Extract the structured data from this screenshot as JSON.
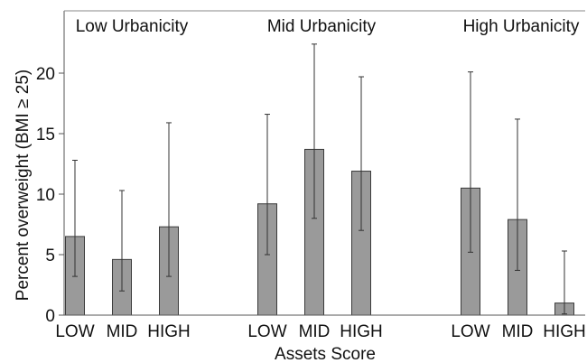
{
  "chart_data": {
    "type": "bar",
    "xlabel": "Assets Score",
    "ylabel": "Percent overweight  (BMI ≥ 25)",
    "ylim": [
      0,
      24
    ],
    "yticks": [
      0,
      5,
      10,
      15,
      20
    ],
    "grid": false,
    "legend": "none",
    "bar_color": "#9a9a9a",
    "groups": [
      {
        "title": "Low Urbanicity",
        "categories": [
          "LOW",
          "MID",
          "HIGH"
        ],
        "values": [
          6.5,
          4.6,
          7.3
        ],
        "error_low": [
          3.2,
          2.0,
          3.2
        ],
        "error_high": [
          12.8,
          10.3,
          15.9
        ]
      },
      {
        "title": "Mid Urbanicity",
        "categories": [
          "LOW",
          "MID",
          "HIGH"
        ],
        "values": [
          9.2,
          13.7,
          11.9
        ],
        "error_low": [
          5.0,
          8.0,
          7.0
        ],
        "error_high": [
          16.6,
          22.4,
          19.7
        ]
      },
      {
        "title": "High Urbanicity",
        "categories": [
          "LOW",
          "MID",
          "HIGH"
        ],
        "values": [
          10.5,
          7.9,
          1.0
        ],
        "error_low": [
          5.2,
          3.7,
          0.1
        ],
        "error_high": [
          20.1,
          16.2,
          5.3
        ]
      }
    ]
  }
}
